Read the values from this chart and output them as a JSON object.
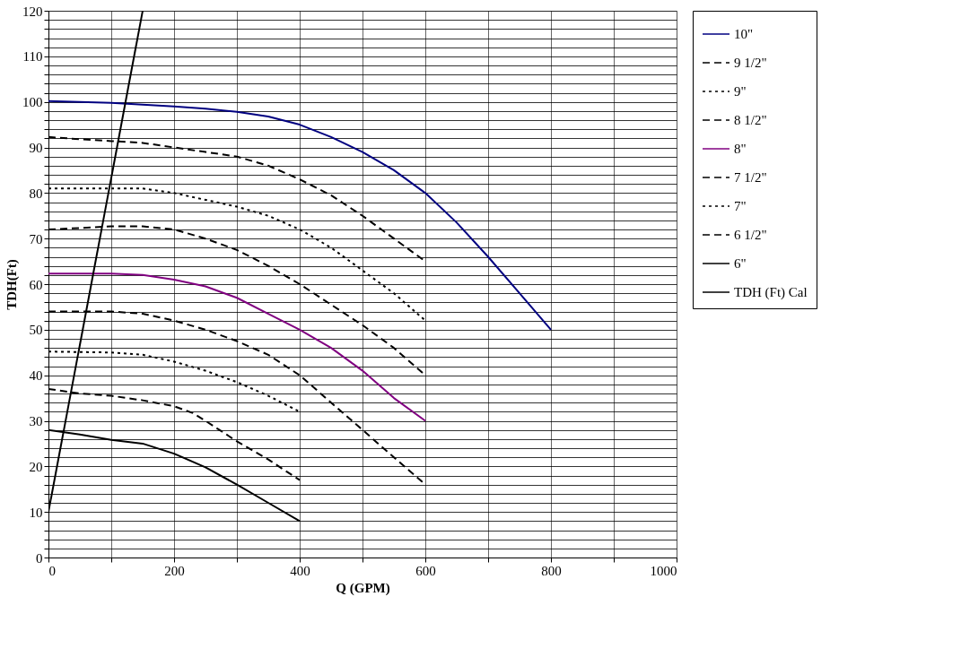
{
  "chart_data": {
    "type": "line",
    "xlabel": "Q (GPM)",
    "ylabel": "TDH(Ft)",
    "xlim": [
      0,
      1000
    ],
    "ylim": [
      0,
      120
    ],
    "xticks": [
      0,
      {
        "value": 100,
        "label": null
      },
      200,
      {
        "value": 300,
        "label": null
      },
      400,
      {
        "value": 500,
        "label": null
      },
      600,
      {
        "value": 700,
        "label": null
      },
      800,
      {
        "value": 900,
        "label": null
      },
      1000
    ],
    "yticks": [
      0,
      {
        "value": 2,
        "label": null
      },
      {
        "value": 4,
        "label": null
      },
      {
        "value": 6,
        "label": null
      },
      {
        "value": 8,
        "label": null
      },
      10,
      {
        "value": 12,
        "label": null
      },
      {
        "value": 14,
        "label": null
      },
      {
        "value": 16,
        "label": null
      },
      {
        "value": 18,
        "label": null
      },
      20,
      {
        "value": 22,
        "label": null
      },
      {
        "value": 24,
        "label": null
      },
      {
        "value": 26,
        "label": null
      },
      {
        "value": 28,
        "label": null
      },
      30,
      {
        "value": 32,
        "label": null
      },
      {
        "value": 34,
        "label": null
      },
      {
        "value": 36,
        "label": null
      },
      {
        "value": 38,
        "label": null
      },
      40,
      {
        "value": 42,
        "label": null
      },
      {
        "value": 44,
        "label": null
      },
      {
        "value": 46,
        "label": null
      },
      {
        "value": 48,
        "label": null
      },
      50,
      {
        "value": 52,
        "label": null
      },
      {
        "value": 54,
        "label": null
      },
      {
        "value": 56,
        "label": null
      },
      {
        "value": 58,
        "label": null
      },
      60,
      {
        "value": 62,
        "label": null
      },
      {
        "value": 64,
        "label": null
      },
      {
        "value": 66,
        "label": null
      },
      {
        "value": 68,
        "label": null
      },
      70,
      {
        "value": 72,
        "label": null
      },
      {
        "value": 74,
        "label": null
      },
      {
        "value": 76,
        "label": null
      },
      {
        "value": 78,
        "label": null
      },
      80,
      {
        "value": 82,
        "label": null
      },
      {
        "value": 84,
        "label": null
      },
      {
        "value": 86,
        "label": null
      },
      {
        "value": 88,
        "label": null
      },
      90,
      {
        "value": 92,
        "label": null
      },
      {
        "value": 94,
        "label": null
      },
      {
        "value": 96,
        "label": null
      },
      {
        "value": 98,
        "label": null
      },
      100,
      {
        "value": 102,
        "label": null
      },
      {
        "value": 104,
        "label": null
      },
      {
        "value": 106,
        "label": null
      },
      {
        "value": 108,
        "label": null
      },
      110,
      {
        "value": 112,
        "label": null
      },
      {
        "value": 114,
        "label": null
      },
      {
        "value": 116,
        "label": null
      },
      {
        "value": 118,
        "label": null
      },
      120
    ],
    "grid": true,
    "legend": "right",
    "marker": "none",
    "series": [
      {
        "name": "10\"",
        "color": "#000080",
        "line_style": "solid",
        "x": [
          0,
          100,
          150,
          200,
          250,
          300,
          350,
          400,
          450,
          500,
          550,
          600,
          650,
          700,
          750,
          800
        ],
        "values": [
          100.2,
          99.8,
          99.4,
          99,
          98.5,
          97.8,
          96.8,
          95,
          92.3,
          89,
          85,
          80,
          73.5,
          66,
          58,
          50
        ]
      },
      {
        "name": "9 1/2\"",
        "color": "#000000",
        "line_style": "dashed",
        "x": [
          0,
          50,
          100,
          150,
          200,
          250,
          300,
          350,
          400,
          450,
          500,
          550,
          600
        ],
        "values": [
          92.3,
          91.8,
          91.4,
          91,
          90,
          89,
          88,
          86,
          83,
          79.5,
          75,
          70,
          65
        ]
      },
      {
        "name": "9\"",
        "color": "#000000",
        "line_style": "dotted",
        "x": [
          0,
          100,
          150,
          200,
          250,
          300,
          350,
          400,
          450,
          500,
          550,
          600
        ],
        "values": [
          81,
          81,
          81,
          80,
          78.5,
          77,
          75,
          72,
          68,
          63,
          58,
          52
        ]
      },
      {
        "name": "8 1/2\"",
        "color": "#000000",
        "line_style": "dashed",
        "x": [
          0,
          50,
          100,
          150,
          200,
          250,
          300,
          350,
          400,
          450,
          500,
          550,
          600
        ],
        "values": [
          72,
          72.3,
          72.7,
          72.7,
          72,
          70,
          67.5,
          64,
          60,
          55.5,
          51,
          46,
          40
        ]
      },
      {
        "name": "8\"",
        "color": "#800080",
        "line_style": "solid",
        "x": [
          0,
          100,
          150,
          200,
          250,
          300,
          350,
          400,
          450,
          500,
          550,
          600
        ],
        "values": [
          62.3,
          62.3,
          62,
          61,
          59.5,
          57,
          53.5,
          50,
          46,
          41,
          35,
          30
        ]
      },
      {
        "name": "7 1/2\"",
        "color": "#000000",
        "line_style": "dashed",
        "x": [
          0,
          100,
          150,
          200,
          250,
          300,
          350,
          400,
          450,
          500,
          550,
          600
        ],
        "values": [
          54,
          54,
          53.5,
          52,
          50,
          47.5,
          44.5,
          40,
          34,
          28,
          22,
          16
        ]
      },
      {
        "name": "7\"",
        "color": "#000000",
        "line_style": "dotted",
        "x": [
          0,
          100,
          150,
          200,
          250,
          300,
          350,
          400
        ],
        "values": [
          45.2,
          45,
          44.5,
          43,
          41,
          38.5,
          35.5,
          32
        ]
      },
      {
        "name": "6 1/2\"",
        "color": "#000000",
        "line_style": "dashed",
        "x": [
          0,
          50,
          100,
          150,
          200,
          230,
          250,
          300,
          350,
          400
        ],
        "values": [
          37,
          36,
          35.5,
          34.5,
          33.2,
          31.7,
          30,
          25.5,
          21.5,
          17
        ]
      },
      {
        "name": "6\"",
        "color": "#000000",
        "line_style": "solid",
        "x": [
          0,
          50,
          100,
          150,
          200,
          250,
          300,
          350,
          400
        ],
        "values": [
          28,
          27,
          25.8,
          25,
          22.8,
          19.8,
          16,
          12,
          8
        ]
      },
      {
        "name": "TDH (Ft) Cal",
        "color": "#000000",
        "line_style": "solid",
        "x": [
          0,
          150
        ],
        "values": [
          10,
          120
        ]
      }
    ]
  }
}
